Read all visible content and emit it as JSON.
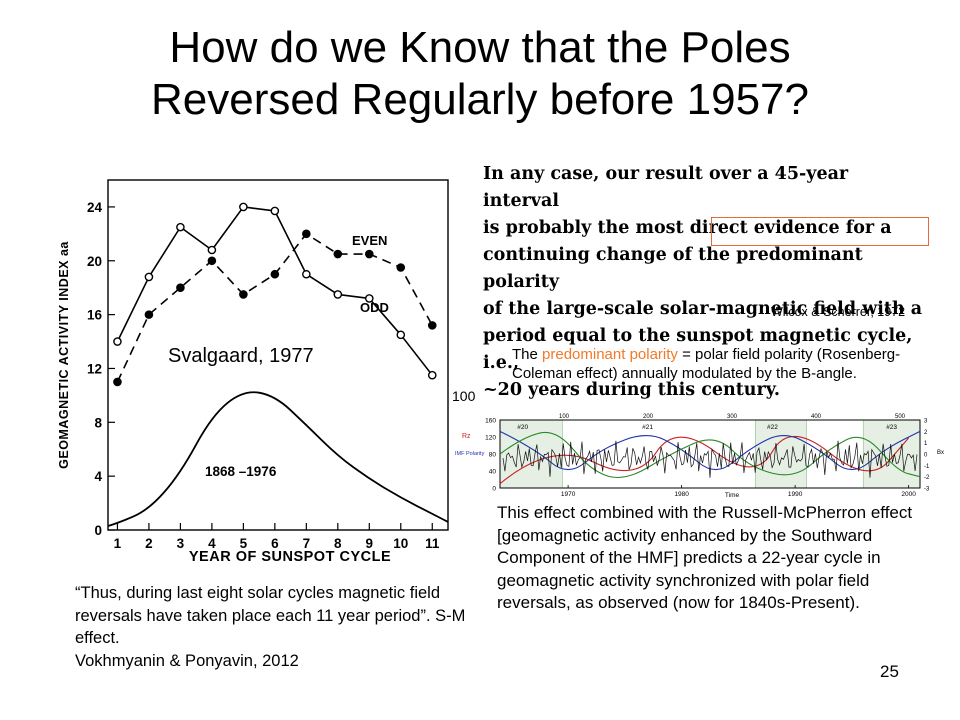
{
  "slide": {
    "title_line1": "How do we Know that the Poles",
    "title_line2": "Reversed Regularly before 1957?",
    "quote_lines": [
      "In any case, our result over a 45-year interval",
      "is probably the most direct evidence for a",
      "continuing change of the predominant polarity",
      "of the large-scale solar-magnetic field with a",
      "period equal to the sunspot magnetic cycle, i.e.,",
      "~20 years during this century."
    ],
    "wilcox_cite": "Wilcox & Scherrer, 1972",
    "svalgaard_cite": "Svalgaard, 1977",
    "predominant_prefix": "The ",
    "predominant_highlight": "predominant polarity",
    "predominant_rest": " = polar field polarity (Rosenberg-Coleman effect) annually modulated by the B-angle.",
    "label_100": "100",
    "effect_text": "This effect combined with the Russell-McPherron effect [geomagnetic activity enhanced by the Southward Component of the HMF] predicts a 22-year cycle in geomagnetic activity synchronized with polar field reversals, as observed (now for 1840s-Present).",
    "thus_quote": "“Thus, during last eight solar cycles magnetic field reversals have taken place each 11 year period”. S-M effect.",
    "vokhmyanin_cite": "Vokhmyanin & Ponyavin, 2012",
    "page_number": "25",
    "highlight_color": "#f07a28",
    "box_color": "#e56b3a"
  },
  "chart_data": [
    {
      "type": "line",
      "xlabel": "YEAR OF SUNSPOT CYCLE",
      "ylabel": "GEOMAGNETIC ACTIVITY INDEX aa",
      "x_ticks": [
        "1",
        "2",
        "3",
        "4",
        "5",
        "6",
        "7",
        "8",
        "9",
        "10",
        "11"
      ],
      "y_ticks": [
        "0",
        "4",
        "8",
        "12",
        "16",
        "20",
        "24"
      ],
      "xlim": [
        0.7,
        11.5
      ],
      "ylim": [
        0,
        26
      ],
      "annotations": [
        "EVEN",
        "ODD",
        "1868 –1976"
      ],
      "series": [
        {
          "name": "EVEN",
          "style": "dashed-filled",
          "x": [
            1,
            2,
            3,
            4,
            5,
            6,
            7,
            8,
            9,
            10,
            11
          ],
          "y": [
            11.0,
            16.0,
            18.0,
            20.0,
            17.5,
            19.0,
            22.0,
            20.5,
            20.5,
            19.5,
            15.2
          ]
        },
        {
          "name": "ODD",
          "style": "solid-open",
          "x": [
            1,
            2,
            3,
            4,
            5,
            6,
            7,
            8,
            9,
            10,
            11
          ],
          "y": [
            14.0,
            18.8,
            22.5,
            20.8,
            24.0,
            23.7,
            19.0,
            17.5,
            17.2,
            14.5,
            11.5
          ]
        },
        {
          "name": "1868 –1976",
          "style": "solid",
          "x": [
            0.7,
            1,
            2,
            3,
            4,
            5,
            6,
            7,
            8,
            9,
            10,
            11,
            11.5
          ],
          "y": [
            0.3,
            0.5,
            1.5,
            4.2,
            8.5,
            10.4,
            10.0,
            7.8,
            5.5,
            3.8,
            2.4,
            1.2,
            0.6
          ]
        }
      ]
    },
    {
      "type": "line",
      "x_ticks": [
        "1970",
        "1980",
        "1990",
        "2000"
      ],
      "xlabel": "Time",
      "y_ticks_left": [
        "0",
        "40",
        "80",
        "120",
        "160"
      ],
      "y_ticks_right": [
        "3",
        "2",
        "1",
        "0",
        "-1",
        "-2",
        "-3"
      ],
      "top_ticks": [
        "100",
        "200",
        "300",
        "400",
        "500"
      ],
      "cycle_labels": [
        "#20",
        "#21",
        "#22",
        "#23"
      ],
      "left_labels": [
        "Rz",
        "IMF Polarity"
      ],
      "right_label": "Bx",
      "xlim": [
        1964,
        2001
      ],
      "series": [
        {
          "name": "Rz",
          "color": "#cc2222",
          "x": [
            1964,
            1968.5,
            1976,
            1979.5,
            1986.5,
            1989.5,
            1996.5,
            2000
          ],
          "y": [
            10,
            110,
            12,
            155,
            14,
            158,
            9,
            118
          ]
        },
        {
          "name": "IMF Polarity",
          "color": "#2233aa",
          "x": [
            1964,
            1967,
            1970,
            1973,
            1977,
            1980,
            1983,
            1986,
            1989,
            1992,
            1995,
            1998,
            2001
          ],
          "y": [
            2,
            0.5,
            -2,
            0.5,
            2,
            0.5,
            -2,
            0.5,
            2,
            0.5,
            -2,
            0.5,
            2
          ]
        },
        {
          "name": "Bx",
          "color": "#2a8a2a",
          "x": [
            1964,
            1966,
            1969,
            1972,
            1975,
            1979,
            1983,
            1986,
            1990,
            1993,
            1996,
            1999,
            2001
          ],
          "y": [
            0,
            1.5,
            2.2,
            -1.5,
            -2.4,
            0,
            1.8,
            -1.2,
            -2.2,
            0.5,
            2.0,
            -1.5,
            -2.0
          ]
        }
      ]
    }
  ]
}
